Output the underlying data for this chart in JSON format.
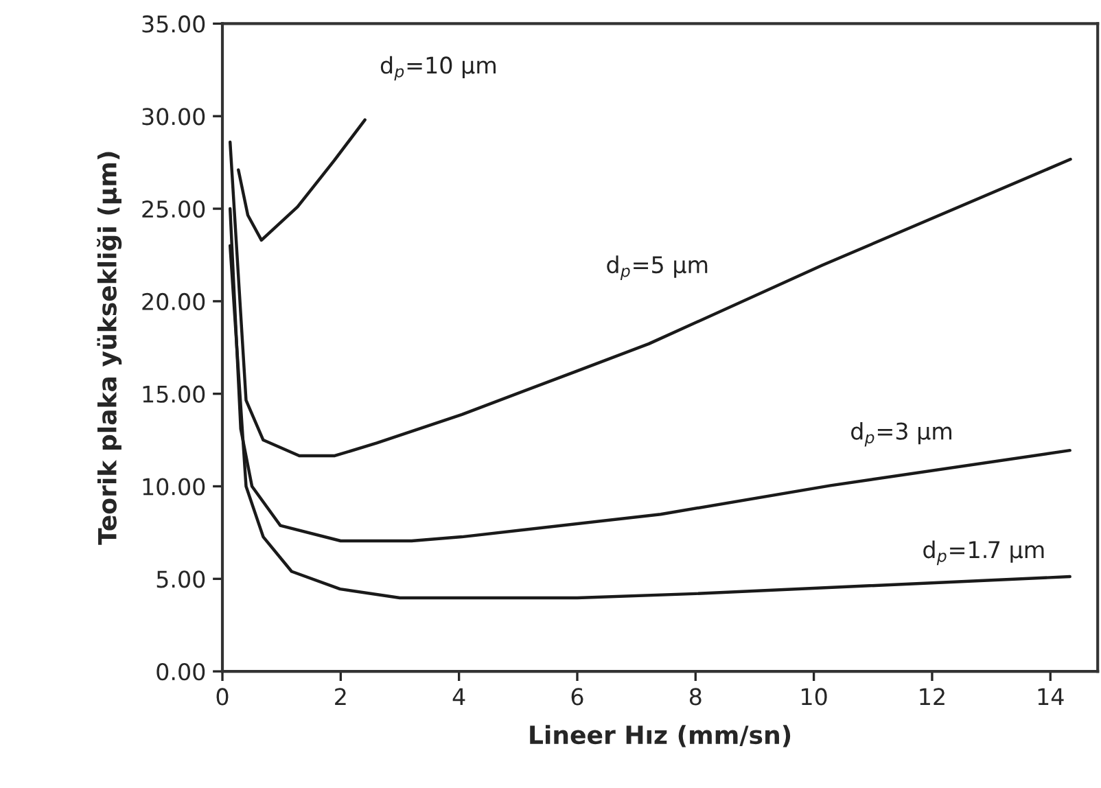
{
  "chart_data": {
    "type": "line",
    "xlabel": "Lineer Hız (mm/sn)",
    "ylabel": "Teorik plaka yüksekliği (µm)",
    "xlim": [
      0,
      14.8
    ],
    "ylim": [
      0,
      35
    ],
    "xticks": [
      0,
      2,
      4,
      6,
      8,
      10,
      12,
      14
    ],
    "yticks": [
      {
        "value": 0,
        "label": "0.00"
      },
      {
        "value": 5,
        "label": "5.00"
      },
      {
        "value": 10,
        "label": "10.00"
      },
      {
        "value": 15,
        "label": "15.00"
      },
      {
        "value": 20,
        "label": "20.00"
      },
      {
        "value": 25,
        "label": "25.00"
      },
      {
        "value": 30,
        "label": "30.00"
      },
      {
        "value": 35,
        "label": "35.00"
      }
    ],
    "grid": false,
    "legend": false,
    "marker": "none",
    "line_style": "solid",
    "series": [
      {
        "color": "#1a1a1a",
        "x": [
          0.27,
          0.43,
          0.66,
          1.27,
          1.89,
          2.41
        ],
        "values": [
          27.1,
          24.65,
          23.3,
          25.1,
          27.6,
          29.8
        ]
      },
      {
        "color": "#1a1a1a",
        "x": [
          0.13,
          0.4,
          0.69,
          1.3,
          1.9,
          2.61,
          4.05,
          5.97,
          7.21,
          10.14,
          14.34
        ],
        "values": [
          28.6,
          14.65,
          12.5,
          11.65,
          11.65,
          12.34,
          13.88,
          16.2,
          17.7,
          21.94,
          27.67
        ]
      },
      {
        "color": "#1a1a1a",
        "x": [
          0.13,
          0.31,
          0.5,
          0.98,
          2.0,
          3.2,
          4.05,
          7.41,
          10.28,
          14.33
        ],
        "values": [
          25.0,
          13.1,
          10.0,
          7.88,
          7.05,
          7.05,
          7.27,
          8.49,
          10.04,
          11.94
        ]
      },
      {
        "color": "#1a1a1a",
        "x": [
          0.13,
          0.4,
          0.69,
          1.17,
          1.99,
          3.0,
          6.0,
          8.0,
          14.33
        ],
        "values": [
          23.0,
          10.0,
          7.27,
          5.4,
          4.45,
          3.97,
          3.97,
          4.2,
          5.12
        ]
      }
    ],
    "annotations": [
      "d$_{p}$=10 µm",
      "d$_{p}$=5 µm",
      "d$_{p}$=3 µm",
      "d$_{p}$=1.7 µm"
    ]
  }
}
